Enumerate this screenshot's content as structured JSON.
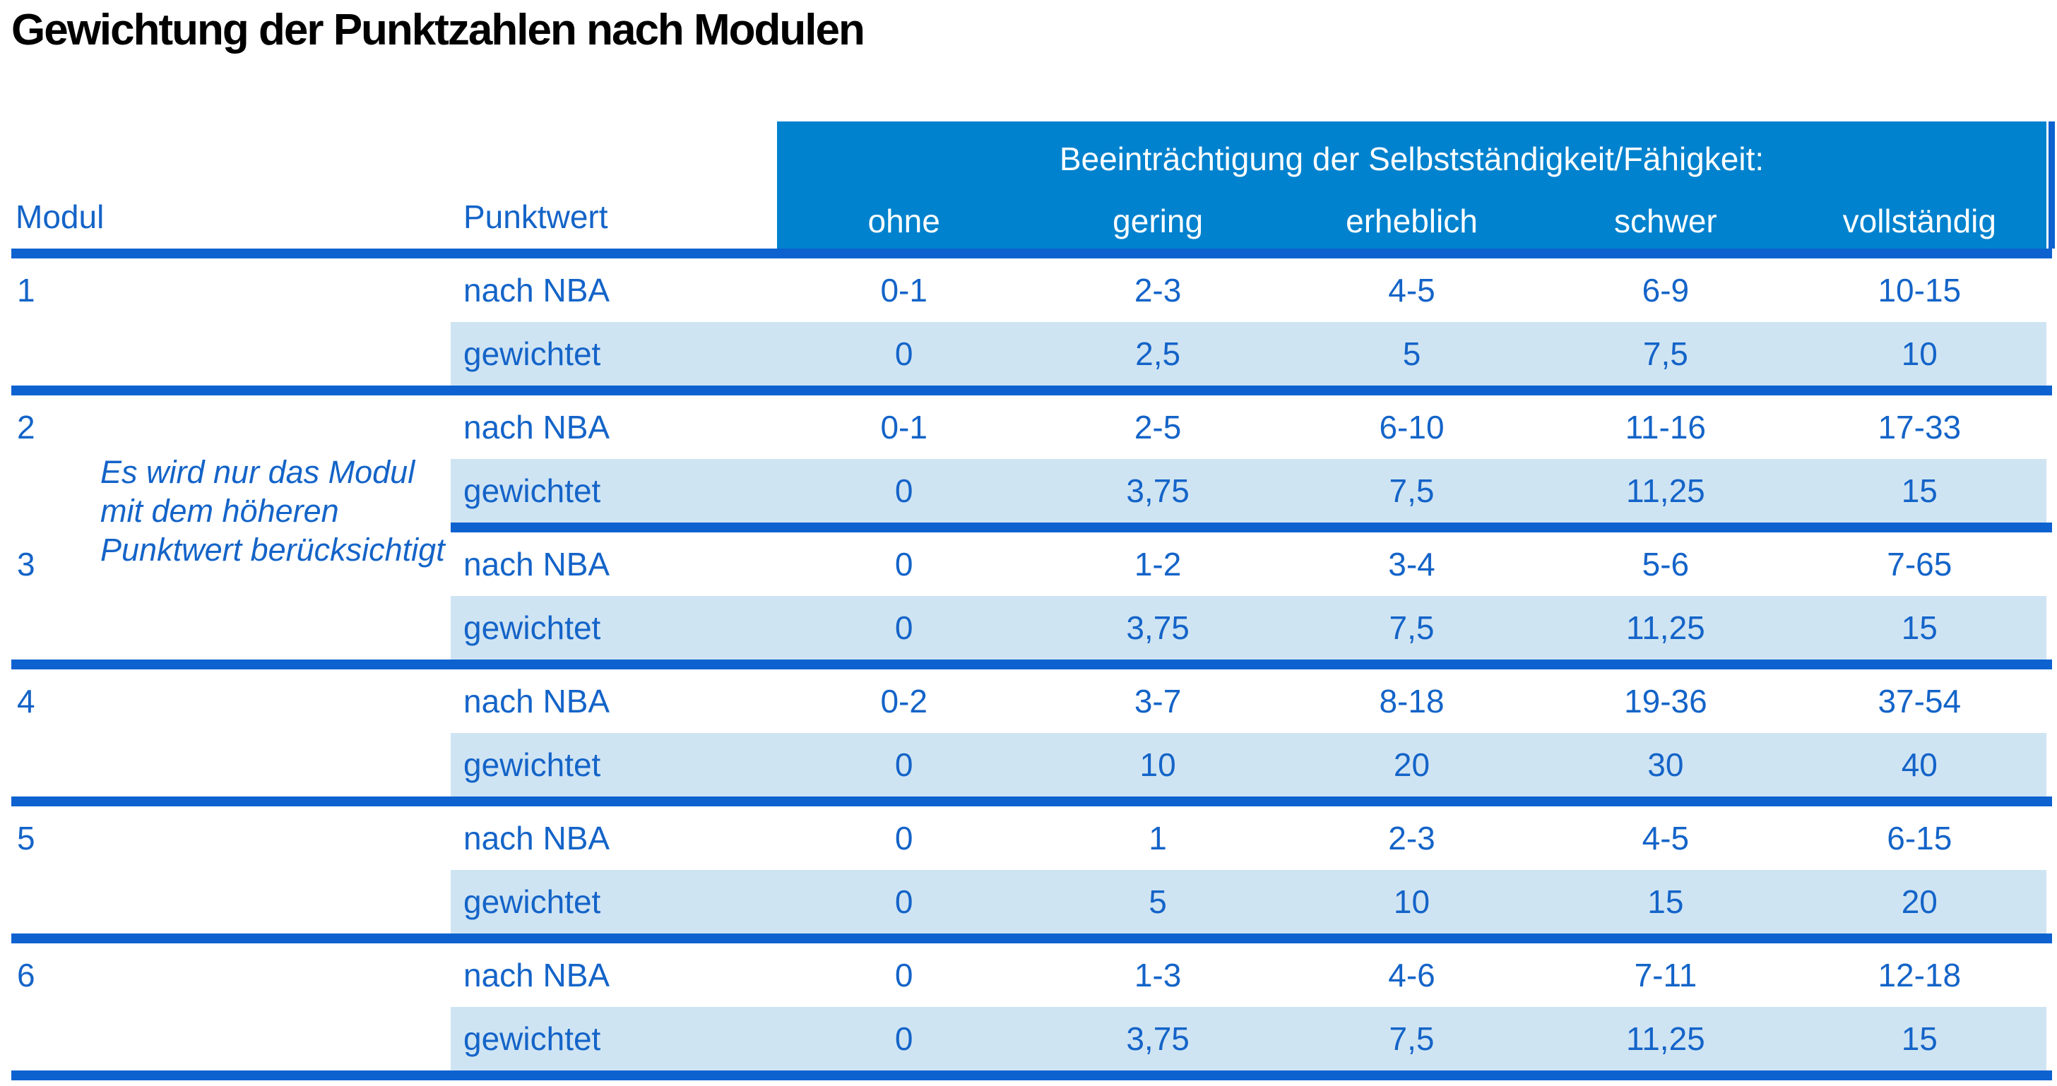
{
  "title": "Gewichtung der Punktzahlen nach Modulen",
  "table": {
    "header": {
      "modul_label": "Modul",
      "punktwert_label": "Punktwert",
      "impairment_title": "Beeinträchtigung der Selbstständigkeit/Fähigkeit:",
      "severity_levels": [
        "ohne",
        "gering",
        "erheblich",
        "schwer",
        "vollständig"
      ]
    },
    "note": "Es wird nur das Modul\nmit dem höheren\nPunktwert berücksichtigt",
    "modules": [
      {
        "id": "1",
        "rows": [
          {
            "label": "nach NBA",
            "values": [
              "0-1",
              "2-3",
              "4-5",
              "6-9",
              "10-15"
            ]
          },
          {
            "label": "gewichtet",
            "values": [
              "0",
              "2,5",
              "5",
              "7,5",
              "10"
            ]
          }
        ]
      },
      {
        "id": "2",
        "rows": [
          {
            "label": "nach NBA",
            "values": [
              "0-1",
              "2-5",
              "6-10",
              "11-16",
              "17-33"
            ]
          },
          {
            "label": "gewichtet",
            "values": [
              "0",
              "3,75",
              "7,5",
              "11,25",
              "15"
            ]
          }
        ]
      },
      {
        "id": "3",
        "rows": [
          {
            "label": "nach NBA",
            "values": [
              "0",
              "1-2",
              "3-4",
              "5-6",
              "7-65"
            ]
          },
          {
            "label": "gewichtet",
            "values": [
              "0",
              "3,75",
              "7,5",
              "11,25",
              "15"
            ]
          }
        ]
      },
      {
        "id": "4",
        "rows": [
          {
            "label": "nach NBA",
            "values": [
              "0-2",
              "3-7",
              "8-18",
              "19-36",
              "37-54"
            ]
          },
          {
            "label": "gewichtet",
            "values": [
              "0",
              "10",
              "20",
              "30",
              "40"
            ]
          }
        ]
      },
      {
        "id": "5",
        "rows": [
          {
            "label": "nach NBA",
            "values": [
              "0",
              "1",
              "2-3",
              "4-5",
              "6-15"
            ]
          },
          {
            "label": "gewichtet",
            "values": [
              "0",
              "5",
              "10",
              "15",
              "20"
            ]
          }
        ]
      },
      {
        "id": "6",
        "rows": [
          {
            "label": "nach NBA",
            "values": [
              "0",
              "1-3",
              "4-6",
              "7-11",
              "12-18"
            ]
          },
          {
            "label": "gewichtet",
            "values": [
              "0",
              "3,75",
              "7,5",
              "11,25",
              "15"
            ]
          }
        ]
      }
    ]
  },
  "colors": {
    "header_bg": "#0082ce",
    "rule_blue": "#0d62d0",
    "row_shade": "#cfe4f3",
    "text_blue": "#1464c8",
    "title_color": "#000000",
    "header_text": "#ffffff"
  }
}
